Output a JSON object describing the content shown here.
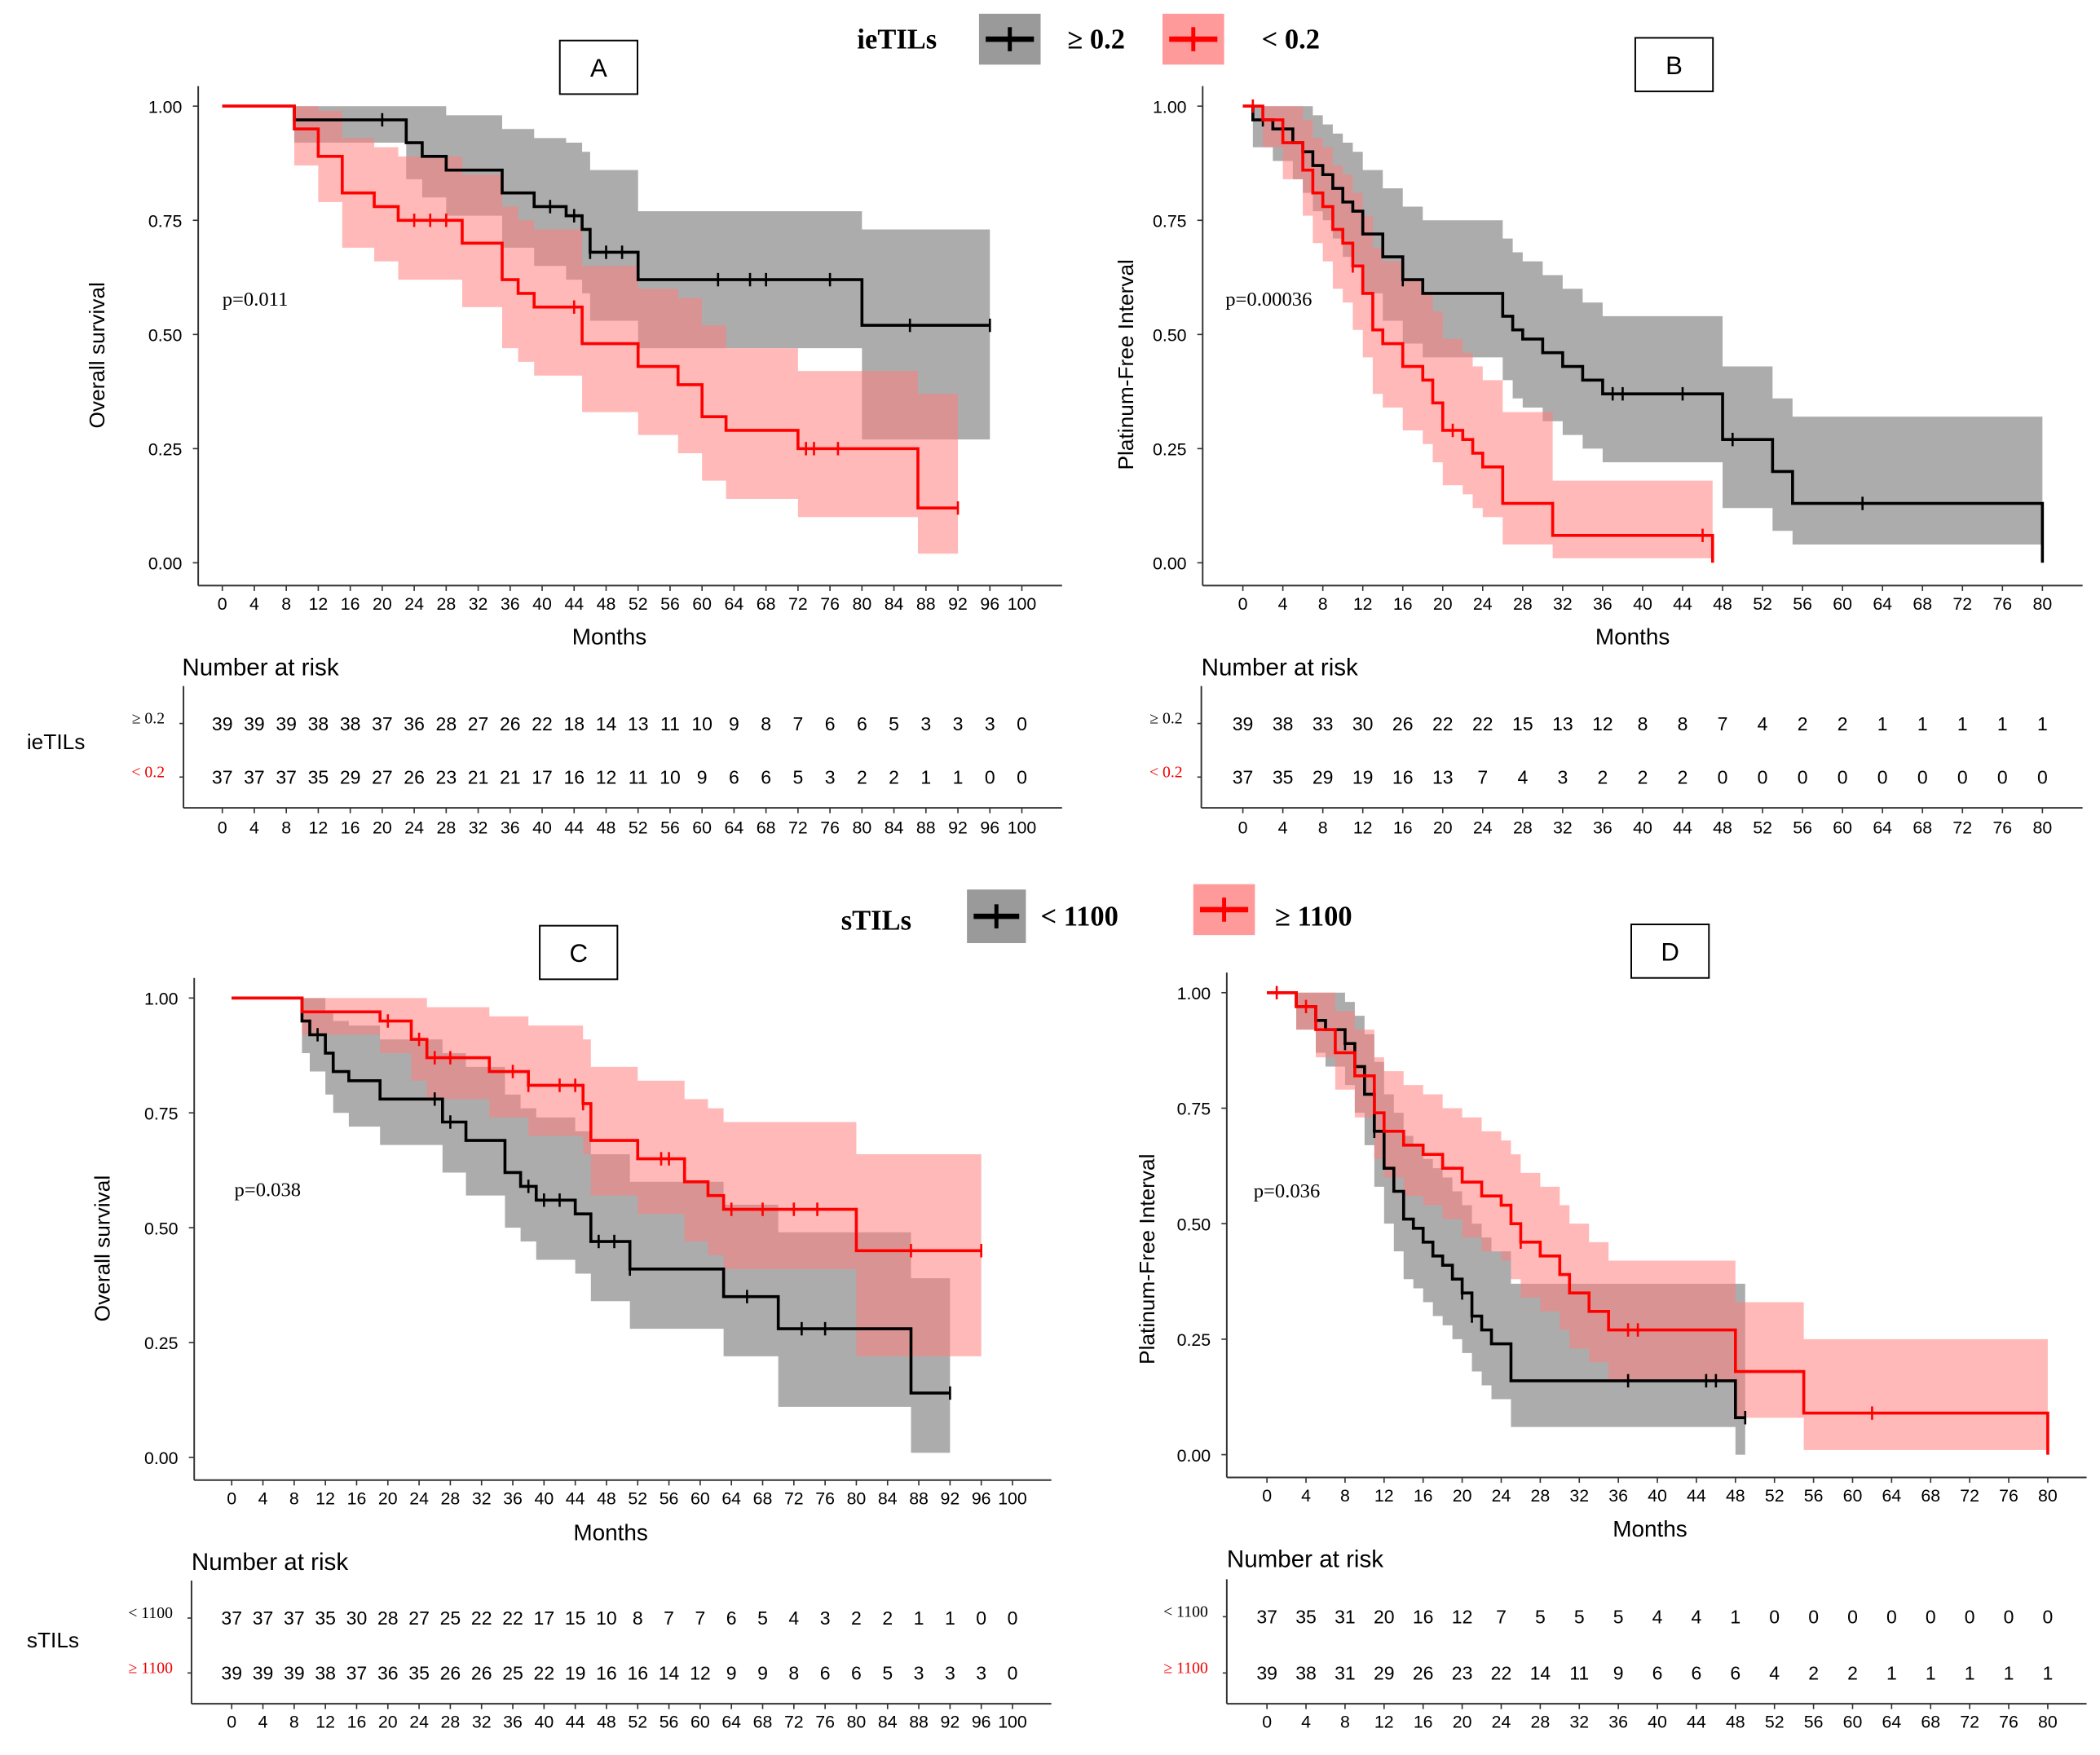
{
  "legend_top": {
    "title": "ieTILs",
    "black_label": "≥ 0.2",
    "red_label": "< 0.2"
  },
  "legend_bottom": {
    "title": "sTILs",
    "black_label": "< 1100",
    "red_label": "≥ 1100"
  },
  "strata_labels": {
    "top": "ieTILs",
    "bottom": "sTILs"
  },
  "colors": {
    "black": "#000000",
    "red": "#ff0000",
    "black_ci": "#808080",
    "red_ci": "#ff8080"
  },
  "chart_data": [
    {
      "id": "A",
      "type": "line",
      "panel_label": "A",
      "ylabel": "Overall survival",
      "xlabel": "Months",
      "p_value": "p=0.011",
      "xlim": [
        0,
        100
      ],
      "ylim": [
        0,
        1
      ],
      "xticks_step": 4,
      "yticks": [
        "0.00",
        "0.25",
        "0.50",
        "0.75",
        "1.00"
      ],
      "risk_title": "Number at risk",
      "series": [
        {
          "name": "≥ 0.2",
          "color": "black",
          "t": [
            0,
            9,
            23,
            25,
            28,
            35,
            39,
            43,
            45,
            46,
            52,
            80,
            96
          ],
          "s": [
            1,
            0.97,
            0.92,
            0.89,
            0.86,
            0.81,
            0.78,
            0.76,
            0.73,
            0.68,
            0.62,
            0.52,
            0.52
          ],
          "lo": [
            1,
            0.92,
            0.84,
            0.8,
            0.76,
            0.69,
            0.65,
            0.62,
            0.59,
            0.53,
            0.47,
            0.27,
            0.27
          ],
          "hi": [
            1,
            1,
            1,
            1,
            0.98,
            0.95,
            0.93,
            0.92,
            0.9,
            0.86,
            0.77,
            0.73,
            0.73
          ],
          "censored": [
            20,
            41,
            44,
            46,
            48,
            50,
            62,
            66,
            68,
            76,
            86,
            96
          ],
          "at_risk": [
            39,
            39,
            39,
            38,
            38,
            37,
            36,
            28,
            27,
            26,
            22,
            18,
            14,
            13,
            11,
            10,
            9,
            8,
            7,
            6,
            6,
            5,
            3,
            3,
            3,
            0
          ]
        },
        {
          "name": "< 0.2",
          "color": "red",
          "t": [
            0,
            9,
            12,
            15,
            19,
            22,
            30,
            35,
            37,
            39,
            45,
            52,
            57,
            60,
            63,
            72,
            87,
            92
          ],
          "s": [
            1,
            0.95,
            0.89,
            0.81,
            0.78,
            0.75,
            0.7,
            0.62,
            0.59,
            0.56,
            0.48,
            0.43,
            0.39,
            0.32,
            0.29,
            0.25,
            0.12,
            0.12
          ],
          "lo": [
            1,
            0.87,
            0.79,
            0.69,
            0.66,
            0.62,
            0.56,
            0.47,
            0.44,
            0.41,
            0.33,
            0.28,
            0.24,
            0.18,
            0.14,
            0.1,
            0.02,
            0.02
          ],
          "hi": [
            1,
            1,
            0.99,
            0.93,
            0.91,
            0.89,
            0.85,
            0.78,
            0.75,
            0.73,
            0.65,
            0.6,
            0.58,
            0.52,
            0.47,
            0.42,
            0.37,
            0.37
          ],
          "censored": [
            24,
            26,
            28,
            44,
            73,
            74,
            77,
            92
          ],
          "at_risk": [
            37,
            37,
            37,
            35,
            29,
            27,
            26,
            23,
            21,
            21,
            17,
            16,
            12,
            11,
            10,
            9,
            6,
            6,
            5,
            3,
            2,
            2,
            1,
            1,
            0,
            0
          ]
        }
      ]
    },
    {
      "id": "B",
      "type": "line",
      "panel_label": "B",
      "ylabel": "Platinum-Free Interval",
      "xlabel": "Months",
      "p_value": "p=0.00036",
      "xlim": [
        0,
        80
      ],
      "ylim": [
        0,
        1
      ],
      "xticks_step": 4,
      "yticks": [
        "0.00",
        "0.25",
        "0.50",
        "0.75",
        "1.00"
      ],
      "risk_title": "Number at risk",
      "series": [
        {
          "name": "≥ 0.2",
          "color": "black",
          "t": [
            0,
            1,
            3,
            5,
            6,
            7,
            8,
            9,
            10,
            11,
            12,
            14,
            16,
            18,
            26,
            27,
            28,
            30,
            32,
            34,
            36,
            48,
            53,
            55,
            80
          ],
          "s": [
            1,
            0.97,
            0.95,
            0.92,
            0.9,
            0.87,
            0.85,
            0.82,
            0.79,
            0.77,
            0.72,
            0.67,
            0.62,
            0.59,
            0.54,
            0.51,
            0.49,
            0.46,
            0.43,
            0.4,
            0.37,
            0.27,
            0.2,
            0.13,
            0
          ],
          "lo": [
            1,
            0.91,
            0.88,
            0.84,
            0.81,
            0.77,
            0.75,
            0.71,
            0.67,
            0.65,
            0.59,
            0.53,
            0.48,
            0.45,
            0.4,
            0.36,
            0.34,
            0.31,
            0.28,
            0.25,
            0.22,
            0.12,
            0.07,
            0.04,
            0.04
          ],
          "hi": [
            1,
            1,
            1,
            1,
            1,
            0.98,
            0.96,
            0.94,
            0.92,
            0.9,
            0.86,
            0.82,
            0.78,
            0.75,
            0.71,
            0.68,
            0.66,
            0.63,
            0.6,
            0.57,
            0.54,
            0.43,
            0.36,
            0.32,
            0.32
          ],
          "censored": [
            2,
            16,
            37,
            38,
            44,
            49,
            62
          ],
          "at_risk": [
            39,
            38,
            33,
            30,
            26,
            22,
            22,
            15,
            13,
            12,
            8,
            8,
            7,
            4,
            2,
            2,
            1,
            1,
            1,
            1,
            1
          ]
        },
        {
          "name": "< 0.2",
          "color": "red",
          "t": [
            0,
            2,
            4,
            6,
            7,
            8,
            9,
            10,
            11,
            12,
            13,
            14,
            16,
            18,
            19,
            20,
            22,
            23,
            24,
            26,
            31,
            47
          ],
          "s": [
            1,
            0.97,
            0.92,
            0.86,
            0.81,
            0.78,
            0.73,
            0.7,
            0.65,
            0.59,
            0.51,
            0.48,
            0.43,
            0.4,
            0.35,
            0.29,
            0.27,
            0.24,
            0.21,
            0.13,
            0.06,
            0
          ],
          "lo": [
            1,
            0.91,
            0.84,
            0.76,
            0.7,
            0.66,
            0.6,
            0.57,
            0.51,
            0.45,
            0.37,
            0.34,
            0.29,
            0.26,
            0.22,
            0.17,
            0.15,
            0.12,
            0.1,
            0.04,
            0.01,
            0.01
          ],
          "hi": [
            1,
            1,
            1,
            0.97,
            0.93,
            0.91,
            0.87,
            0.85,
            0.81,
            0.76,
            0.69,
            0.66,
            0.62,
            0.59,
            0.55,
            0.49,
            0.46,
            0.43,
            0.4,
            0.33,
            0.18,
            0.18
          ],
          "censored": [
            1,
            11,
            21,
            46
          ],
          "at_risk": [
            37,
            35,
            29,
            19,
            16,
            13,
            7,
            4,
            3,
            2,
            2,
            2,
            0,
            0,
            0,
            0,
            0,
            0,
            0,
            0,
            0
          ]
        }
      ]
    },
    {
      "id": "C",
      "type": "line",
      "panel_label": "C",
      "ylabel": "Overall survival",
      "xlabel": "Months",
      "p_value": "p=0.038",
      "xlim": [
        0,
        100
      ],
      "ylim": [
        0,
        1
      ],
      "xticks_step": 4,
      "yticks": [
        "0.00",
        "0.25",
        "0.50",
        "0.75",
        "1.00"
      ],
      "risk_title": "Number at risk",
      "series": [
        {
          "name": "< 1100",
          "color": "black",
          "t": [
            0,
            9,
            10,
            12,
            13,
            15,
            19,
            27,
            30,
            35,
            37,
            39,
            44,
            46,
            51,
            63,
            70,
            87,
            92
          ],
          "s": [
            1,
            0.95,
            0.92,
            0.88,
            0.84,
            0.82,
            0.78,
            0.73,
            0.69,
            0.62,
            0.59,
            0.56,
            0.53,
            0.47,
            0.41,
            0.35,
            0.28,
            0.14,
            0.14
          ],
          "lo": [
            1,
            0.88,
            0.84,
            0.79,
            0.75,
            0.72,
            0.68,
            0.62,
            0.57,
            0.5,
            0.47,
            0.43,
            0.4,
            0.34,
            0.28,
            0.22,
            0.11,
            0.01,
            0.01
          ],
          "hi": [
            1,
            1,
            1,
            0.97,
            0.95,
            0.94,
            0.91,
            0.88,
            0.85,
            0.79,
            0.76,
            0.74,
            0.71,
            0.66,
            0.6,
            0.55,
            0.49,
            0.39,
            0.39
          ],
          "censored": [
            11,
            26,
            28,
            38,
            40,
            42,
            47,
            49,
            51,
            66,
            73,
            76,
            92
          ],
          "at_risk": [
            37,
            37,
            37,
            35,
            30,
            28,
            27,
            25,
            22,
            22,
            17,
            15,
            10,
            8,
            7,
            7,
            6,
            5,
            4,
            3,
            2,
            2,
            1,
            1,
            0,
            0
          ]
        },
        {
          "name": "≥ 1100",
          "color": "red",
          "t": [
            0,
            9,
            19,
            23,
            25,
            33,
            38,
            45,
            46,
            52,
            58,
            61,
            63,
            80,
            96
          ],
          "s": [
            1,
            0.97,
            0.95,
            0.91,
            0.87,
            0.84,
            0.81,
            0.77,
            0.69,
            0.65,
            0.6,
            0.57,
            0.54,
            0.45,
            0.45
          ],
          "lo": [
            1,
            0.92,
            0.88,
            0.82,
            0.78,
            0.74,
            0.7,
            0.66,
            0.57,
            0.53,
            0.47,
            0.44,
            0.41,
            0.22,
            0.22
          ],
          "hi": [
            1,
            1,
            1,
            1,
            0.98,
            0.96,
            0.94,
            0.91,
            0.85,
            0.82,
            0.78,
            0.76,
            0.73,
            0.66,
            0.66
          ],
          "censored": [
            20,
            24,
            26,
            28,
            36,
            38,
            42,
            44,
            45,
            55,
            56,
            64,
            68,
            72,
            75,
            87,
            96
          ],
          "at_risk": [
            39,
            39,
            39,
            38,
            37,
            36,
            35,
            26,
            26,
            25,
            22,
            19,
            16,
            16,
            14,
            12,
            9,
            9,
            8,
            6,
            6,
            5,
            3,
            3,
            3,
            0
          ]
        }
      ]
    },
    {
      "id": "D",
      "type": "line",
      "panel_label": "D",
      "ylabel": "Platinum-Free Interval",
      "xlabel": "Months",
      "p_value": "p=0.036",
      "xlim": [
        0,
        80
      ],
      "ylim": [
        0,
        1
      ],
      "xticks_step": 4,
      "yticks": [
        "0.00",
        "0.25",
        "0.50",
        "0.75",
        "1.00"
      ],
      "risk_title": "Number at risk",
      "series": [
        {
          "name": "< 1100",
          "color": "black",
          "t": [
            0,
            3,
            5,
            6,
            8,
            9,
            10,
            11,
            12,
            13,
            14,
            15,
            16,
            17,
            18,
            19,
            20,
            21,
            22,
            23,
            25,
            48,
            49
          ],
          "s": [
            1,
            0.97,
            0.94,
            0.92,
            0.89,
            0.84,
            0.78,
            0.7,
            0.62,
            0.57,
            0.51,
            0.49,
            0.46,
            0.43,
            0.41,
            0.38,
            0.35,
            0.3,
            0.27,
            0.24,
            0.16,
            0.08,
            0.08
          ],
          "lo": [
            1,
            0.92,
            0.87,
            0.84,
            0.8,
            0.74,
            0.67,
            0.58,
            0.5,
            0.44,
            0.38,
            0.36,
            0.33,
            0.3,
            0.28,
            0.25,
            0.22,
            0.18,
            0.15,
            0.12,
            0.06,
            0,
            0
          ],
          "hi": [
            1,
            1,
            1,
            1,
            0.98,
            0.95,
            0.91,
            0.85,
            0.78,
            0.74,
            0.69,
            0.67,
            0.64,
            0.62,
            0.6,
            0.57,
            0.54,
            0.5,
            0.47,
            0.44,
            0.37,
            0.37,
            0.37
          ],
          "censored": [
            8,
            11,
            20,
            21,
            37,
            45,
            46,
            49
          ],
          "at_risk": [
            37,
            35,
            31,
            20,
            16,
            12,
            7,
            5,
            5,
            5,
            4,
            4,
            1,
            0,
            0,
            0,
            0,
            0,
            0,
            0,
            0
          ]
        },
        {
          "name": "≥ 1100",
          "color": "red",
          "t": [
            0,
            3,
            5,
            7,
            9,
            11,
            12,
            14,
            16,
            18,
            20,
            22,
            24,
            25,
            26,
            28,
            30,
            31,
            33,
            35,
            48,
            55,
            80
          ],
          "s": [
            1,
            0.97,
            0.92,
            0.87,
            0.82,
            0.74,
            0.7,
            0.67,
            0.65,
            0.62,
            0.59,
            0.56,
            0.54,
            0.5,
            0.46,
            0.43,
            0.39,
            0.35,
            0.31,
            0.27,
            0.18,
            0.09,
            0
          ],
          "lo": [
            1,
            0.92,
            0.86,
            0.79,
            0.73,
            0.64,
            0.6,
            0.56,
            0.54,
            0.51,
            0.47,
            0.44,
            0.42,
            0.38,
            0.34,
            0.31,
            0.27,
            0.23,
            0.2,
            0.16,
            0.08,
            0.01,
            0.01
          ],
          "hi": [
            1,
            1,
            1,
            0.96,
            0.92,
            0.86,
            0.83,
            0.8,
            0.78,
            0.75,
            0.73,
            0.7,
            0.68,
            0.65,
            0.61,
            0.58,
            0.54,
            0.5,
            0.46,
            0.42,
            0.33,
            0.25,
            0.25
          ],
          "censored": [
            1,
            4,
            26,
            37,
            38,
            62
          ],
          "at_risk": [
            39,
            38,
            31,
            29,
            26,
            23,
            22,
            14,
            11,
            9,
            6,
            6,
            6,
            4,
            2,
            2,
            1,
            1,
            1,
            1,
            1
          ]
        }
      ]
    }
  ]
}
